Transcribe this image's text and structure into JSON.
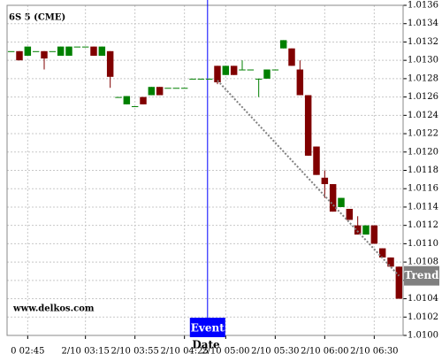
{
  "chart_data": {
    "type": "candlestick",
    "title": "6S 5 (CME)",
    "x_label": "Date",
    "watermark": "www.delkos.com",
    "categories": [
      null,
      null,
      "0 02:45",
      null,
      null,
      null,
      null,
      null,
      null,
      "2/10 03:15",
      null,
      null,
      null,
      null,
      null,
      "2/10 03:55",
      null,
      null,
      null,
      null,
      null,
      "2/10 04:25",
      null,
      null,
      null,
      null,
      "2/10 05:00",
      null,
      null,
      null,
      null,
      null,
      "2/10 05:30",
      null,
      null,
      null,
      null,
      null,
      "2/10 06:00",
      null,
      null,
      null,
      null,
      null,
      "2/10 06:30",
      null,
      null,
      null
    ],
    "open": [
      1.0131,
      1.0131,
      1.01305,
      1.0131,
      1.0131,
      1.0131,
      1.01305,
      1.01305,
      1.01315,
      1.01315,
      1.01315,
      1.01305,
      1.0131,
      1.0126,
      1.01252,
      1.0125,
      1.0126,
      1.01262,
      1.01271,
      1.0127,
      1.0127,
      1.0127,
      1.0128,
      1.0128,
      1.0128,
      1.01294,
      1.01284,
      1.01294,
      1.0129,
      1.0129,
      1.0128,
      1.0128,
      1.0129,
      1.01313,
      1.01313,
      1.0129,
      1.01262,
      1.01206,
      1.01172,
      1.01165,
      1.0114,
      1.01138,
      1.0112,
      1.0111,
      1.0112,
      1.01095,
      1.01085,
      1.01075
    ],
    "high": [
      1.0131,
      1.0131,
      1.01315,
      1.0131,
      1.0131,
      1.0131,
      1.01315,
      1.01315,
      1.01315,
      1.01315,
      1.01315,
      1.01315,
      1.0131,
      1.0126,
      1.01261,
      1.0125,
      1.0126,
      1.01271,
      1.01271,
      1.0127,
      1.0127,
      1.0127,
      1.0128,
      1.0128,
      1.0128,
      1.01294,
      1.01294,
      1.01294,
      1.013,
      1.0129,
      1.0128,
      1.0129,
      1.0129,
      1.01322,
      1.01313,
      1.013,
      1.01262,
      1.01206,
      1.0118,
      1.01165,
      1.0115,
      1.01138,
      1.0113,
      1.0112,
      1.0112,
      1.01095,
      1.01085,
      1.01075
    ],
    "low": [
      1.0131,
      1.013,
      1.01305,
      1.0131,
      1.0129,
      1.0131,
      1.01305,
      1.01305,
      1.01315,
      1.01315,
      1.01305,
      1.01305,
      1.0127,
      1.0126,
      1.01252,
      1.0125,
      1.01252,
      1.01262,
      1.01262,
      1.0127,
      1.0127,
      1.0127,
      1.0128,
      1.0128,
      1.0128,
      1.01274,
      1.01284,
      1.01284,
      1.0129,
      1.0129,
      1.0126,
      1.0128,
      1.0129,
      1.01313,
      1.01294,
      1.01262,
      1.01196,
      1.01175,
      1.0115,
      1.01135,
      1.0114,
      1.01126,
      1.0111,
      1.0111,
      1.011,
      1.01085,
      1.01075,
      1.0104
    ],
    "close": [
      1.0131,
      1.013,
      1.01315,
      1.0131,
      1.01302,
      1.0131,
      1.01315,
      1.01315,
      1.01315,
      1.01315,
      1.01305,
      1.01315,
      1.01282,
      1.0126,
      1.01261,
      1.0125,
      1.01252,
      1.01271,
      1.01262,
      1.0127,
      1.0127,
      1.0127,
      1.0128,
      1.0128,
      1.0128,
      1.01276,
      1.01294,
      1.01284,
      1.0129,
      1.0129,
      1.0128,
      1.0129,
      1.0129,
      1.01322,
      1.01294,
      1.01262,
      1.01196,
      1.01175,
      1.01165,
      1.01135,
      1.0115,
      1.01126,
      1.0111,
      1.0112,
      1.011,
      1.01085,
      1.01075,
      1.0104
    ],
    "up_color": "#008000",
    "down_color": "#800000",
    "ylim": [
      1.01,
      1.0136
    ],
    "yticks": [
      {
        "value": 1.01,
        "label": "1.0100"
      },
      1.0102,
      1.0104,
      1.0106,
      1.0108,
      {
        "value": 1.011,
        "label": "1.0110"
      },
      1.0112,
      1.0114,
      1.0116,
      1.0118,
      {
        "value": 1.012,
        "label": "1.0120"
      },
      1.0122,
      1.0124,
      1.0126,
      1.0128,
      {
        "value": 1.013,
        "label": "1.0130"
      },
      1.0132,
      1.0134,
      1.0136
    ],
    "grid": true,
    "event": {
      "label": "Event",
      "color": "#0000ff"
    },
    "trend": {
      "label": "Trend",
      "color": "#808080",
      "start_value": 1.01278,
      "end_value": 1.01065
    }
  }
}
